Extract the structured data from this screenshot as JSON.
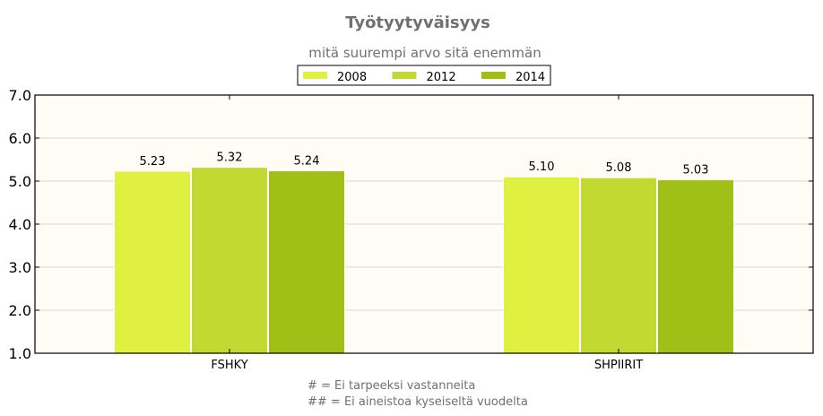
{
  "chart_data": {
    "type": "bar",
    "title": "Työtyytyväisyys",
    "subtitle": "mitä suurempi arvo sitä enemmän",
    "categories": [
      "FSHKY",
      "SHPIIRIT"
    ],
    "series": [
      {
        "name": "2008",
        "color": "#e0f040",
        "values": [
          5.23,
          5.1
        ],
        "labels": [
          "5.23",
          "5.10"
        ]
      },
      {
        "name": "2012",
        "color": "#c2d932",
        "values": [
          5.32,
          5.08
        ],
        "labels": [
          "5.32",
          "5.08"
        ]
      },
      {
        "name": "2014",
        "color": "#a0c018",
        "values": [
          5.24,
          5.03
        ],
        "labels": [
          "5.24",
          "5.03"
        ]
      }
    ],
    "ylim": [
      1.0,
      7.0
    ],
    "yticks": [
      "1.0",
      "2.0",
      "3.0",
      "4.0",
      "5.0",
      "6.0",
      "7.0"
    ],
    "grid": true,
    "legend_position": "top-center",
    "plot_background": "#fffcf5",
    "footnotes": [
      "# = Ei tarpeeksi vastanneita",
      "## = Ei aineistoa kyseiseltä vuodelta"
    ]
  }
}
